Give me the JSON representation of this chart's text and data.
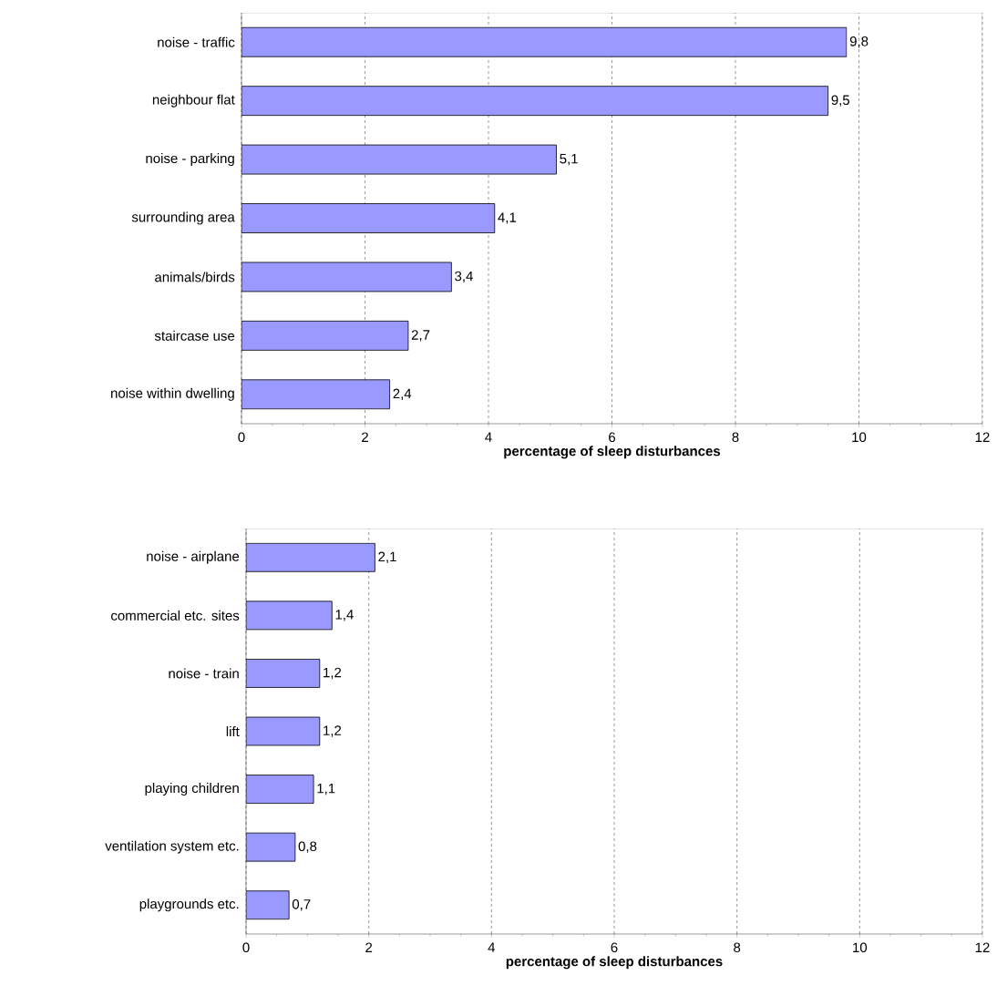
{
  "chart_data": [
    {
      "type": "bar",
      "orientation": "horizontal",
      "categories": [
        "noise - traffic",
        "neighbour flat",
        "noise - parking",
        "surrounding area",
        "animals/birds",
        "staircase use",
        "noise within dwelling"
      ],
      "values": [
        9.8,
        9.5,
        5.1,
        4.1,
        3.4,
        2.7,
        2.4
      ],
      "value_labels": [
        "9,8",
        "9,5",
        "5,1",
        "4,1",
        "3,4",
        "2,7",
        "2,4"
      ],
      "color": "#9999ff",
      "xlabel": "percentage of sleep disturbances",
      "xlim": [
        0,
        12
      ],
      "xticks": [
        0,
        2,
        4,
        6,
        8,
        10,
        12
      ],
      "grid": "x"
    },
    {
      "type": "bar",
      "orientation": "horizontal",
      "categories": [
        "noise - airplane",
        "commercial etc. sites",
        "noise - train",
        "lift",
        "playing children",
        "ventilation system etc.",
        "playgrounds etc."
      ],
      "values": [
        2.1,
        1.4,
        1.2,
        1.2,
        1.1,
        0.8,
        0.7
      ],
      "value_labels": [
        "2,1",
        "1,4",
        "1,2",
        "1,2",
        "1,1",
        "0,8",
        "0,7"
      ],
      "color": "#9999ff",
      "xlabel": "percentage of sleep disturbances",
      "xlim": [
        0,
        12
      ],
      "xticks": [
        0,
        2,
        4,
        6,
        8,
        10,
        12
      ],
      "grid": "x"
    }
  ]
}
